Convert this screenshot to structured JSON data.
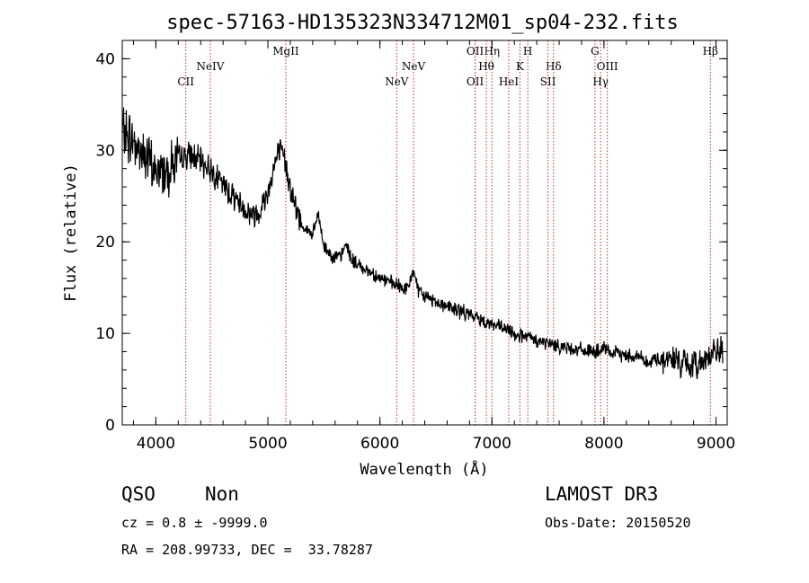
{
  "chart_data": {
    "type": "line",
    "title": "spec-57163-HD135323N334712M01_sp04-232.fits",
    "xlabel": "Wavelength (Å)",
    "ylabel": "Flux (relative)",
    "xlim": [
      3700,
      9100
    ],
    "ylim": [
      0,
      42
    ],
    "xticks": [
      4000,
      5000,
      6000,
      7000,
      8000,
      9000
    ],
    "yticks": [
      0,
      10,
      20,
      30,
      40
    ],
    "grid": false,
    "series": [
      {
        "x": [
          3700,
          3750,
          3800,
          3850,
          3900,
          3950,
          4000,
          4050,
          4100,
          4150,
          4200,
          4250,
          4300,
          4350,
          4400,
          4450,
          4500,
          4550,
          4600,
          4650,
          4700,
          4750,
          4800,
          4850,
          4900,
          4950,
          5000,
          5050,
          5100,
          5150,
          5200,
          5250,
          5300,
          5350,
          5400,
          5450,
          5500,
          5550,
          5600,
          5650,
          5700,
          5750,
          5800,
          5850,
          5900,
          5950,
          6000,
          6050,
          6100,
          6150,
          6200,
          6250,
          6300,
          6350,
          6400,
          6450,
          6500,
          6550,
          6600,
          6650,
          6700,
          6750,
          6800,
          6850,
          6900,
          6950,
          7000,
          7050,
          7100,
          7150,
          7200,
          7250,
          7300,
          7350,
          7400,
          7450,
          7500,
          7550,
          7600,
          7650,
          7700,
          7750,
          7800,
          7850,
          7900,
          7950,
          8000,
          8050,
          8100,
          8150,
          8200,
          8250,
          8300,
          8350,
          8400,
          8450,
          8500,
          8550,
          8600,
          8650,
          8700,
          8750,
          8800,
          8850,
          8900,
          8950,
          9000
        ],
        "y": [
          32,
          31.5,
          31,
          30,
          29.5,
          28.5,
          27.5,
          27.8,
          28,
          28.5,
          29,
          29.3,
          29.5,
          29.2,
          28.8,
          28.3,
          27.8,
          27,
          26.2,
          25.5,
          25,
          24.2,
          23.5,
          23,
          23,
          24,
          25.5,
          28,
          30,
          29,
          26,
          23.5,
          22,
          21.2,
          20.8,
          23,
          19.5,
          18.8,
          18.3,
          18.3,
          19.8,
          18,
          17.5,
          17.2,
          16.8,
          16.5,
          16,
          15.8,
          15.5,
          15.2,
          15,
          14.8,
          17,
          14.3,
          14.1,
          13.8,
          13.5,
          13.2,
          13,
          12.7,
          12.5,
          12.3,
          12,
          11.8,
          11.5,
          11.3,
          11,
          10.8,
          10.5,
          10.3,
          10,
          9.8,
          9.6,
          9.4,
          9.2,
          9,
          8.9,
          8.8,
          8.6,
          8.5,
          8.4,
          8.3,
          8.2,
          8.1,
          8,
          8,
          8.3,
          7.9,
          7.8,
          7.7,
          7.6,
          7.6,
          7.5,
          7.4,
          6.5,
          7.2,
          7.2,
          7.1,
          7.3,
          7,
          6.8,
          6.5,
          6.3,
          6.8,
          7.5,
          7.5,
          8
        ]
      }
    ],
    "lines": [
      {
        "label": "CII",
        "x": 4267,
        "row": 3
      },
      {
        "label": "NeIV",
        "x": 4486,
        "row": 2
      },
      {
        "label": "MgII",
        "x": 5160,
        "row": 1
      },
      {
        "label": "NeV",
        "x": 6150,
        "row": 3
      },
      {
        "label": "NeV",
        "x": 6300,
        "row": 2
      },
      {
        "label": "OII",
        "x": 6850,
        "row": 1
      },
      {
        "label": "OII",
        "x": 6850,
        "row": 3
      },
      {
        "label": "Hη",
        "x": 7000,
        "row": 1
      },
      {
        "label": "Hθ",
        "x": 6950,
        "row": 2
      },
      {
        "label": "HeI",
        "x": 7150,
        "row": 3
      },
      {
        "label": "K",
        "x": 7250,
        "row": 2
      },
      {
        "label": "H",
        "x": 7320,
        "row": 1
      },
      {
        "label": "Hδ",
        "x": 7550,
        "row": 2
      },
      {
        "label": "SII",
        "x": 7500,
        "row": 3
      },
      {
        "label": "G",
        "x": 7920,
        "row": 1
      },
      {
        "label": "OIII",
        "x": 8030,
        "row": 2
      },
      {
        "label": "Hγ",
        "x": 7970,
        "row": 3
      },
      {
        "label": "Hβ",
        "x": 8950,
        "row": 1
      }
    ]
  },
  "info": {
    "class": "QSO",
    "subclass": "Non",
    "survey": "LAMOST DR3",
    "cz": "cz = 0.8 ± -9999.0",
    "obs_date": "Obs-Date: 20150520",
    "radec": "RA = 208.99733, DEC =  33.78287"
  }
}
